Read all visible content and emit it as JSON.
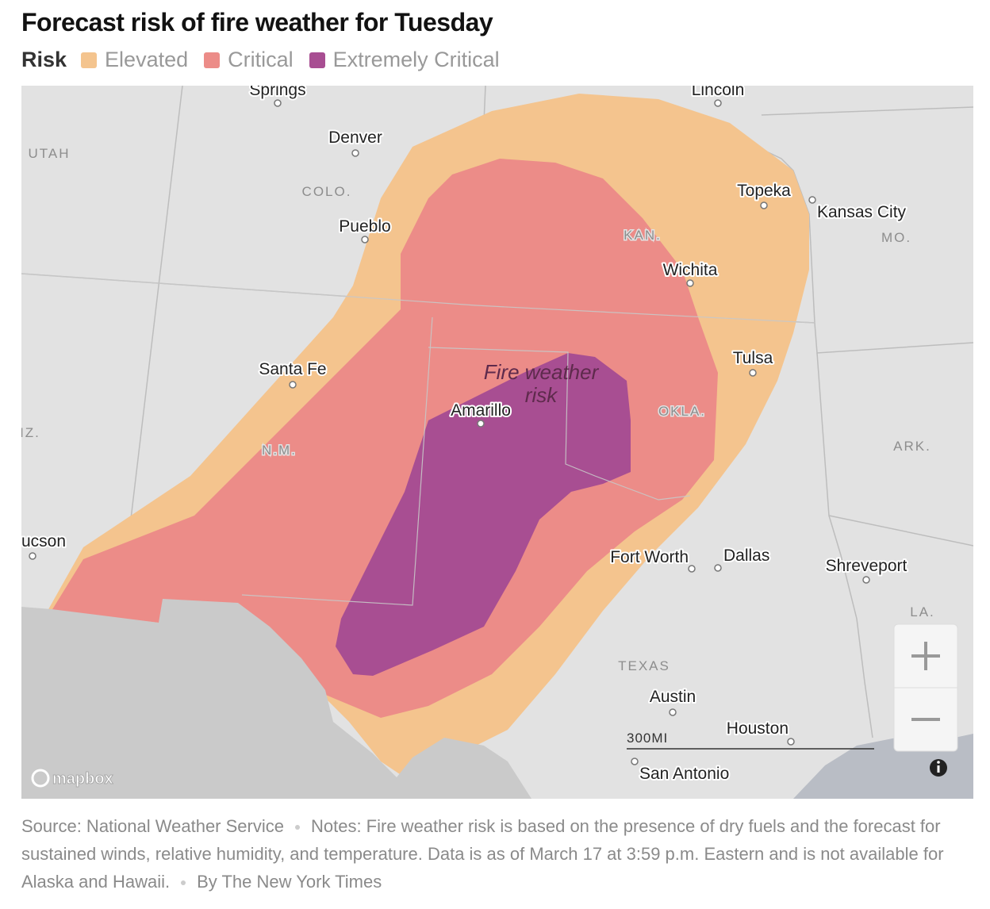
{
  "header": {
    "title": "Forecast risk of fire weather for Tuesday",
    "legend": {
      "label": "Risk",
      "items": [
        {
          "name": "Elevated",
          "color": "#f4c48e"
        },
        {
          "name": "Critical",
          "color": "#ec8c88"
        },
        {
          "name": "Extremely Critical",
          "color": "#a84e92"
        }
      ]
    }
  },
  "map": {
    "annotation": [
      "Fire weather",
      "risk"
    ],
    "cities": [
      {
        "name": "Springs"
      },
      {
        "name": "Lincoln"
      },
      {
        "name": "Denver"
      },
      {
        "name": "Pueblo"
      },
      {
        "name": "Topeka"
      },
      {
        "name": "Kansas City"
      },
      {
        "name": "Wichita"
      },
      {
        "name": "Tulsa"
      },
      {
        "name": "Santa Fe"
      },
      {
        "name": "Amarillo"
      },
      {
        "name": "ucson"
      },
      {
        "name": "Fort Worth"
      },
      {
        "name": "Dallas"
      },
      {
        "name": "Shreveport"
      },
      {
        "name": "Austin"
      },
      {
        "name": "Houston"
      },
      {
        "name": "San Antonio"
      }
    ],
    "states": [
      "UTAH",
      "COLO.",
      "KAN.",
      "MO.",
      "OKLA.",
      "N.M.",
      "IZ.",
      "ARK.",
      "LA.",
      "TEXAS"
    ],
    "scale": "300MI",
    "attribution": "mapbox"
  },
  "footer": {
    "source": "Source: National Weather Service",
    "notes": "Notes: Fire weather risk is based on the presence of dry fuels and the forecast for sustained winds, relative humidity, and temperature. Data is as of March 17 at 3:59 p.m. Eastern and is not available for Alaska and Hawaii.",
    "credit": "By The New York Times"
  }
}
